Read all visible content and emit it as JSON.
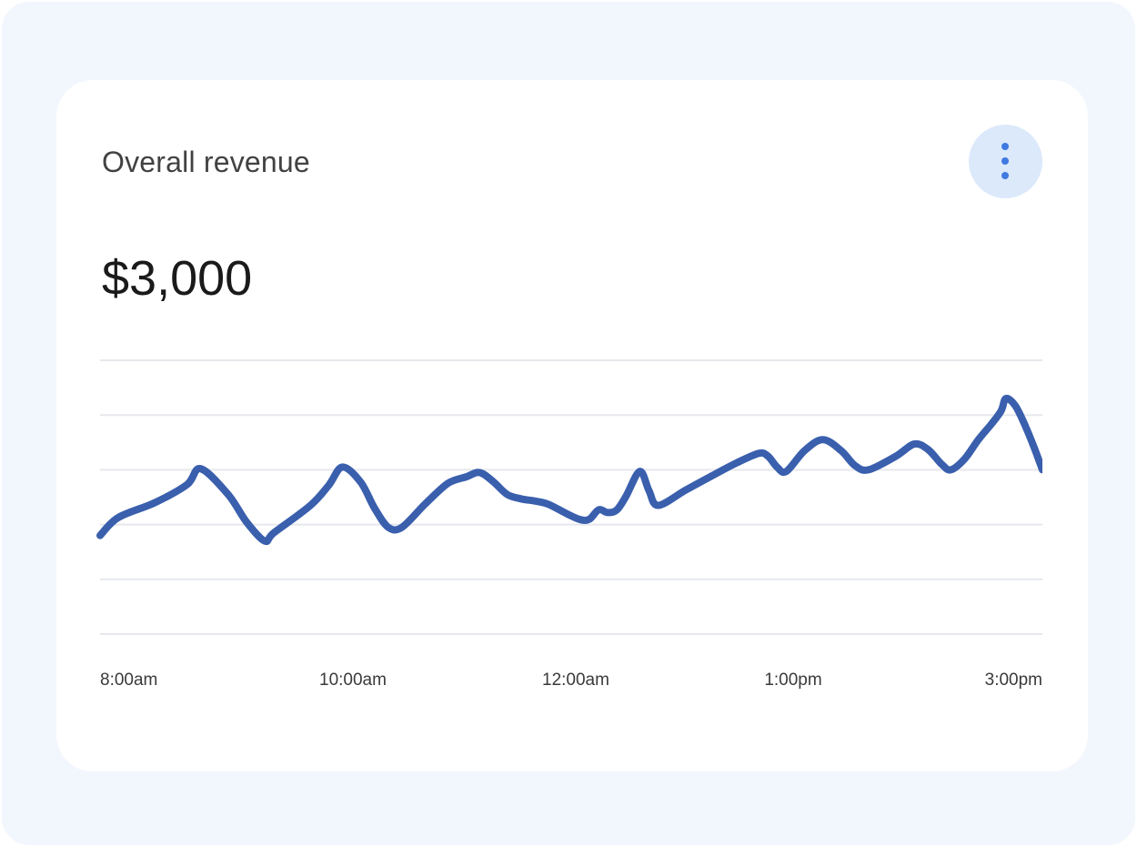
{
  "card": {
    "title": "Overall revenue",
    "value": "$3,000",
    "menu_icon": "more-vertical-icon"
  },
  "colors": {
    "background": "#f2f6fd",
    "card": "#ffffff",
    "line": "#3a5fad",
    "menu_bg": "#dce9fb",
    "menu_dots": "#3f7ae0",
    "grid": "#e6e8ee"
  },
  "chart_data": {
    "type": "line",
    "title": "",
    "xlabel": "",
    "ylabel": "",
    "x_tick_labels": [
      "8:00am",
      "10:00am",
      "12:00am",
      "1:00pm",
      "3:00pm"
    ],
    "ylim": [
      0,
      5
    ],
    "grid": true,
    "gridlines": 6,
    "series": [
      {
        "values": [
          [
            0.0,
            1.8
          ],
          [
            0.02,
            2.13
          ],
          [
            0.06,
            2.4
          ],
          [
            0.095,
            2.73
          ],
          [
            0.11,
            3.02
          ],
          [
            0.14,
            2.55
          ],
          [
            0.16,
            2.05
          ],
          [
            0.18,
            1.7
          ],
          [
            0.19,
            1.85
          ],
          [
            0.23,
            2.35
          ],
          [
            0.25,
            2.72
          ],
          [
            0.265,
            3.05
          ],
          [
            0.285,
            2.77
          ],
          [
            0.3,
            2.3
          ],
          [
            0.315,
            1.95
          ],
          [
            0.33,
            1.95
          ],
          [
            0.355,
            2.37
          ],
          [
            0.38,
            2.75
          ],
          [
            0.4,
            2.87
          ],
          [
            0.415,
            2.95
          ],
          [
            0.43,
            2.78
          ],
          [
            0.445,
            2.55
          ],
          [
            0.46,
            2.47
          ],
          [
            0.475,
            2.43
          ],
          [
            0.49,
            2.37
          ],
          [
            0.51,
            2.2
          ],
          [
            0.525,
            2.09
          ],
          [
            0.535,
            2.1
          ],
          [
            0.545,
            2.27
          ],
          [
            0.555,
            2.22
          ],
          [
            0.565,
            2.27
          ],
          [
            0.575,
            2.52
          ],
          [
            0.59,
            2.97
          ],
          [
            0.6,
            2.62
          ],
          [
            0.61,
            2.35
          ],
          [
            0.64,
            2.63
          ],
          [
            0.67,
            2.9
          ],
          [
            0.695,
            3.12
          ],
          [
            0.72,
            3.3
          ],
          [
            0.73,
            3.25
          ],
          [
            0.74,
            3.05
          ],
          [
            0.75,
            2.97
          ],
          [
            0.77,
            3.35
          ],
          [
            0.79,
            3.55
          ],
          [
            0.81,
            3.35
          ],
          [
            0.825,
            3.08
          ],
          [
            0.84,
            3.0
          ],
          [
            0.87,
            3.25
          ],
          [
            0.89,
            3.47
          ],
          [
            0.905,
            3.37
          ],
          [
            0.92,
            3.1
          ],
          [
            0.93,
            3.0
          ],
          [
            0.945,
            3.2
          ],
          [
            0.96,
            3.55
          ],
          [
            0.975,
            3.85
          ],
          [
            0.985,
            4.08
          ],
          [
            0.99,
            4.3
          ],
          [
            1.0,
            4.18
          ],
          [
            1.01,
            3.85
          ],
          [
            1.02,
            3.45
          ],
          [
            1.03,
            3.0
          ]
        ]
      }
    ]
  }
}
